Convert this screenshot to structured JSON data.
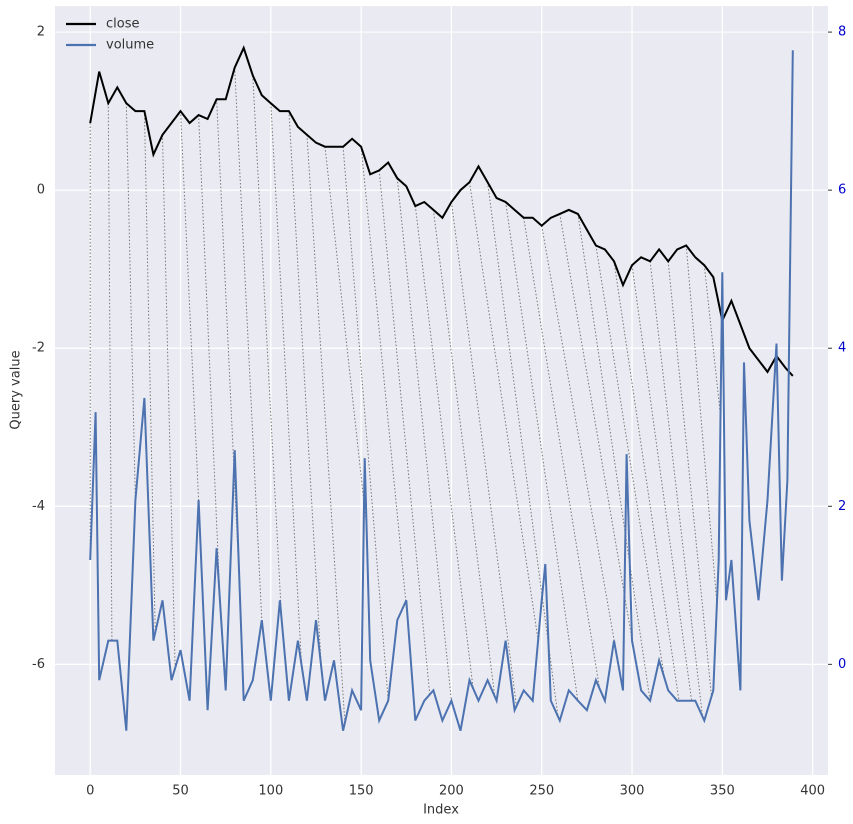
{
  "chart_data": {
    "type": "line",
    "xlabel": "Index",
    "ylabel": "Query value",
    "xlim": [
      -19.5,
      408.5
    ],
    "ylim": [
      -7.4,
      2.33
    ],
    "y2lim": [
      -1.4,
      8.33
    ],
    "xticks": [
      0,
      50,
      100,
      150,
      200,
      250,
      300,
      350,
      400
    ],
    "yticks": [
      -6,
      -4,
      -2,
      0,
      2
    ],
    "y2ticks": [
      0,
      2,
      4,
      6,
      8
    ],
    "y2tick_color": "#0000cc",
    "grid": true,
    "legend": "upper left",
    "series": [
      {
        "name": "close",
        "color": "#000000",
        "x": [
          0,
          5,
          10,
          15,
          20,
          25,
          30,
          35,
          40,
          45,
          50,
          55,
          60,
          65,
          70,
          75,
          80,
          85,
          90,
          95,
          100,
          105,
          110,
          115,
          120,
          125,
          130,
          135,
          140,
          145,
          150,
          155,
          160,
          165,
          170,
          175,
          180,
          185,
          190,
          195,
          200,
          205,
          210,
          215,
          220,
          225,
          230,
          235,
          240,
          245,
          250,
          255,
          260,
          265,
          270,
          275,
          280,
          285,
          290,
          295,
          300,
          305,
          310,
          315,
          320,
          325,
          330,
          335,
          340,
          345,
          350,
          355,
          360,
          365,
          370,
          375,
          380,
          385,
          389
        ],
        "values": [
          0.85,
          1.5,
          1.1,
          1.3,
          1.1,
          1.0,
          1.0,
          0.45,
          0.7,
          0.85,
          1.0,
          0.85,
          0.95,
          0.9,
          1.15,
          1.15,
          1.55,
          1.8,
          1.45,
          1.2,
          1.1,
          1.0,
          1.0,
          0.8,
          0.7,
          0.6,
          0.55,
          0.55,
          0.55,
          0.65,
          0.55,
          0.2,
          0.25,
          0.35,
          0.15,
          0.05,
          -0.2,
          -0.15,
          -0.25,
          -0.35,
          -0.15,
          0.0,
          0.1,
          0.3,
          0.1,
          -0.1,
          -0.15,
          -0.25,
          -0.35,
          -0.35,
          -0.45,
          -0.35,
          -0.3,
          -0.25,
          -0.3,
          -0.5,
          -0.7,
          -0.75,
          -0.9,
          -1.2,
          -0.95,
          -0.85,
          -0.9,
          -0.75,
          -0.9,
          -0.75,
          -0.7,
          -0.85,
          -0.95,
          -1.1,
          -1.65,
          -1.4,
          -1.7,
          -2.0,
          -2.15,
          -2.3,
          -2.1,
          -2.25,
          -2.35
        ]
      },
      {
        "name": "volume",
        "color": "#4c72b0",
        "axis": "y2",
        "x": [
          0,
          3,
          5,
          10,
          15,
          20,
          25,
          30,
          35,
          40,
          45,
          50,
          55,
          60,
          65,
          70,
          75,
          80,
          85,
          90,
          95,
          100,
          105,
          110,
          115,
          120,
          125,
          130,
          135,
          140,
          145,
          150,
          152,
          155,
          160,
          165,
          170,
          175,
          180,
          185,
          190,
          195,
          200,
          205,
          210,
          215,
          220,
          225,
          230,
          235,
          240,
          245,
          250,
          252,
          255,
          260,
          265,
          270,
          275,
          280,
          285,
          290,
          295,
          297,
          300,
          305,
          310,
          315,
          320,
          325,
          330,
          335,
          340,
          345,
          348,
          350,
          352,
          355,
          360,
          362,
          365,
          370,
          375,
          380,
          383,
          386,
          389
        ],
        "values": [
          1.32,
          3.19,
          -0.2,
          0.3,
          0.3,
          -0.84,
          2.08,
          3.37,
          0.3,
          0.81,
          -0.2,
          0.18,
          -0.46,
          2.08,
          -0.58,
          1.47,
          -0.33,
          2.71,
          -0.46,
          -0.2,
          0.56,
          -0.46,
          0.81,
          -0.46,
          0.3,
          -0.46,
          0.56,
          -0.46,
          0.05,
          -0.84,
          -0.33,
          -0.58,
          2.61,
          0.05,
          -0.71,
          -0.46,
          0.56,
          0.81,
          -0.71,
          -0.46,
          -0.33,
          -0.71,
          -0.46,
          -0.84,
          -0.2,
          -0.46,
          -0.2,
          -0.46,
          0.3,
          -0.58,
          -0.33,
          -0.46,
          0.81,
          1.27,
          -0.46,
          -0.71,
          -0.33,
          -0.46,
          -0.58,
          -0.2,
          -0.46,
          0.3,
          -0.33,
          2.66,
          0.3,
          -0.33,
          -0.46,
          0.05,
          -0.33,
          -0.46,
          -0.46,
          -0.46,
          -0.71,
          -0.33,
          1.32,
          4.96,
          0.81,
          1.32,
          -0.33,
          3.82,
          1.82,
          0.81,
          2.08,
          4.06,
          1.06,
          2.33,
          7.77
        ]
      }
    ],
    "alignment": [
      [
        0,
        0
      ],
      [
        10,
        12
      ],
      [
        20,
        25
      ],
      [
        30,
        36
      ],
      [
        40,
        47
      ],
      [
        50,
        60
      ],
      [
        60,
        72
      ],
      [
        70,
        83
      ],
      [
        80,
        95
      ],
      [
        90,
        106
      ],
      [
        100,
        117
      ],
      [
        110,
        128
      ],
      [
        120,
        141
      ],
      [
        130,
        153
      ],
      [
        140,
        165
      ],
      [
        150,
        176
      ],
      [
        160,
        188
      ],
      [
        170,
        200
      ],
      [
        180,
        212
      ],
      [
        190,
        224
      ],
      [
        200,
        236
      ],
      [
        210,
        248
      ],
      [
        220,
        259
      ],
      [
        230,
        270
      ],
      [
        240,
        282
      ],
      [
        250,
        293
      ],
      [
        260,
        302
      ],
      [
        270,
        310
      ],
      [
        280,
        318
      ],
      [
        290,
        326
      ],
      [
        300,
        333
      ],
      [
        310,
        339
      ],
      [
        320,
        344
      ],
      [
        330,
        347
      ],
      [
        340,
        349
      ],
      [
        350,
        350
      ]
    ]
  }
}
